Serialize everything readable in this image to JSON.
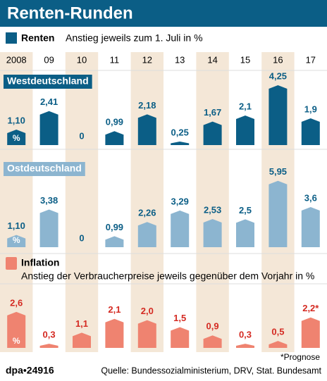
{
  "title": "Renten-Runden",
  "footnote": "*Prognose",
  "agency": "dpa•24916",
  "source": "Quelle: Bundessozialministerium, DRV, Stat. Bundesamt",
  "chart_data": [
    {
      "type": "bar",
      "legend_label": "Renten",
      "subtitle": "Anstieg jeweils zum 1. Juli in %",
      "panel_label": "Westdeutschland",
      "unit": "%",
      "categories": [
        "2008",
        "09",
        "10",
        "11",
        "12",
        "13",
        "14",
        "15",
        "16",
        "17"
      ],
      "values": [
        1.1,
        2.41,
        0,
        0.99,
        2.18,
        0.25,
        1.67,
        2.1,
        4.25,
        1.9
      ],
      "value_labels": [
        "1,10",
        "2,41",
        "0",
        "0,99",
        "2,18",
        "0,25",
        "1,67",
        "2,1",
        "4,25",
        "1,9"
      ],
      "color": "#0b5e86",
      "label_color": "#0b5e86",
      "ylim": [
        0,
        5
      ]
    },
    {
      "type": "bar",
      "panel_label": "Ostdeutschland",
      "unit": "%",
      "values": [
        1.1,
        3.38,
        0,
        0.99,
        2.26,
        3.29,
        2.53,
        2.5,
        5.95,
        3.6
      ],
      "value_labels": [
        "1,10",
        "3,38",
        "0",
        "0,99",
        "2,26",
        "3,29",
        "2,53",
        "2,5",
        "5,95",
        "3,6"
      ],
      "color": "#8cb5d0",
      "label_color": "#0b5e86",
      "ylim": [
        0,
        6
      ]
    },
    {
      "type": "bar",
      "legend_label": "Inflation",
      "subtitle": "Anstieg der Verbraucherpreise jeweils gegenüber dem Vorjahr in %",
      "unit": "%",
      "values": [
        2.6,
        0.3,
        1.1,
        2.1,
        2.0,
        1.5,
        0.9,
        0.3,
        0.5,
        2.2
      ],
      "value_labels": [
        "2,6",
        "0,3",
        "1,1",
        "2,1",
        "2,0",
        "1,5",
        "0,9",
        "0,3",
        "0,5",
        "2,2*"
      ],
      "color": "#ef8370",
      "label_color": "#d42a22",
      "ylim": [
        0,
        3
      ]
    }
  ]
}
